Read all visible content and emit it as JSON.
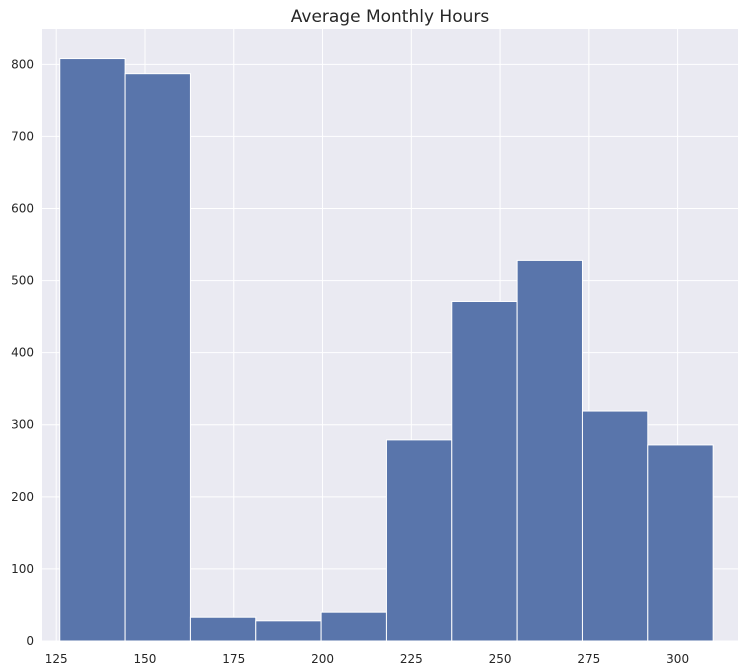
{
  "chart_data": {
    "type": "bar",
    "title": "Average Monthly Hours",
    "xlabel": "",
    "ylabel": "",
    "bin_edges": [
      126,
      144.4,
      162.8,
      181.2,
      199.6,
      218.0,
      236.4,
      254.8,
      273.2,
      291.6,
      310
    ],
    "values": [
      808,
      787,
      33,
      28,
      40,
      279,
      471,
      528,
      319,
      272
    ],
    "xlim": [
      121,
      317
    ],
    "ylim": [
      0,
      849
    ],
    "x_ticks": [
      125,
      150,
      175,
      200,
      225,
      250,
      275,
      300
    ],
    "y_ticks": [
      0,
      100,
      200,
      300,
      400,
      500,
      600,
      700,
      800
    ],
    "grid": true,
    "colors": {
      "bar_fill": "#5975ab",
      "bar_edge": "#ffffff",
      "plot_background": "#eaeaf2",
      "grid": "#ffffff",
      "text": "#262626"
    }
  }
}
